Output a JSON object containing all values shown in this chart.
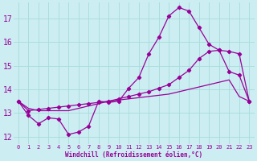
{
  "background_color": "#cceef2",
  "grid_color": "#aadddd",
  "line_color": "#990099",
  "xlabel": "Windchill (Refroidissement éolien,°C)",
  "ylabel_ticks": [
    12,
    13,
    14,
    15,
    16,
    17
  ],
  "xtick_labels": [
    "0",
    "1",
    "2",
    "3",
    "4",
    "5",
    "6",
    "7",
    "8",
    "9",
    "10",
    "11",
    "12",
    "13",
    "14",
    "15",
    "16",
    "17",
    "18",
    "19",
    "20",
    "21",
    "22",
    "23"
  ],
  "line1_x": [
    0,
    1,
    2,
    3,
    4,
    5,
    6,
    7,
    8,
    9,
    10,
    11,
    12,
    13,
    14,
    15,
    16,
    17,
    18,
    19,
    20,
    21,
    22,
    23
  ],
  "line1_y": [
    13.5,
    12.9,
    12.55,
    12.8,
    12.75,
    12.1,
    12.2,
    12.45,
    13.5,
    13.45,
    13.5,
    14.05,
    14.5,
    15.5,
    16.2,
    17.1,
    17.45,
    17.3,
    16.6,
    15.9,
    15.65,
    14.75,
    14.6,
    13.5
  ],
  "line2_x": [
    0,
    1,
    2,
    3,
    4,
    5,
    6,
    7,
    8,
    9,
    10,
    11,
    12,
    13,
    14,
    15,
    16,
    17,
    18,
    19,
    20,
    21,
    22,
    23
  ],
  "line2_y": [
    13.5,
    13.1,
    13.15,
    13.2,
    13.25,
    13.3,
    13.35,
    13.4,
    13.45,
    13.5,
    13.6,
    13.7,
    13.8,
    13.9,
    14.05,
    14.2,
    14.5,
    14.8,
    15.3,
    15.6,
    15.65,
    15.6,
    15.5,
    13.5
  ],
  "line3_x": [
    0,
    1,
    2,
    3,
    4,
    5,
    6,
    7,
    8,
    9,
    10,
    11,
    12,
    13,
    14,
    15,
    16,
    17,
    18,
    19,
    20,
    21,
    22,
    23
  ],
  "line3_y": [
    13.5,
    13.2,
    13.1,
    13.1,
    13.1,
    13.1,
    13.2,
    13.3,
    13.4,
    13.5,
    13.55,
    13.6,
    13.65,
    13.7,
    13.75,
    13.8,
    13.9,
    14.0,
    14.1,
    14.2,
    14.3,
    14.4,
    13.7,
    13.5
  ],
  "ylim": [
    11.7,
    17.65
  ],
  "xlim": [
    -0.5,
    23.5
  ]
}
